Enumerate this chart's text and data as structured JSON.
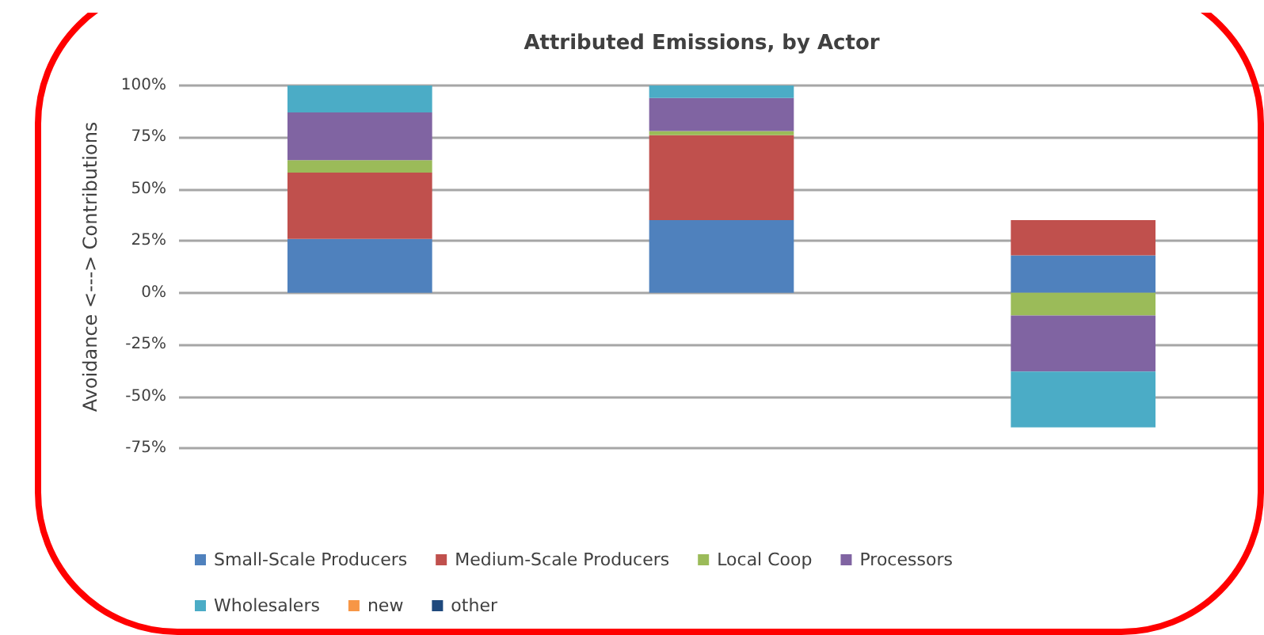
{
  "chart_data": {
    "type": "bar",
    "title": "Attributed Emissions, by Actor",
    "ylabel": "Avoidance <---> Contributions",
    "categories": [
      null,
      null,
      null
    ],
    "stacked": true,
    "series": [
      {
        "name": "Small-Scale Producers",
        "color": "#4f81bd",
        "values": [
          26,
          35,
          18
        ]
      },
      {
        "name": "Medium-Scale Producers",
        "color": "#c0504d",
        "values": [
          32,
          41,
          17
        ]
      },
      {
        "name": "Local Coop",
        "color": "#9bbb59",
        "values": [
          6,
          2,
          -11
        ]
      },
      {
        "name": "Processors",
        "color": "#8064a2",
        "values": [
          23,
          16,
          -27
        ]
      },
      {
        "name": "Wholesalers",
        "color": "#4bacc6",
        "values": [
          13,
          6,
          -27
        ]
      },
      {
        "name": "new",
        "color": "#f79646",
        "values": [
          null,
          null,
          null
        ]
      },
      {
        "name": "other",
        "color": "#1f497d",
        "values": [
          null,
          null,
          null
        ]
      }
    ],
    "ylim": [
      -75,
      100
    ],
    "yticks": [
      {
        "value": 100,
        "label": "100%"
      },
      {
        "value": 75,
        "label": "75%"
      },
      {
        "value": 50,
        "label": "50%"
      },
      {
        "value": 25,
        "label": "25%"
      },
      {
        "value": 0,
        "label": "0%"
      },
      {
        "value": -25,
        "label": "-25%"
      },
      {
        "value": -50,
        "label": "-50%"
      },
      {
        "value": -75,
        "label": "-75%"
      }
    ],
    "grid": true,
    "legend": "bottom"
  }
}
